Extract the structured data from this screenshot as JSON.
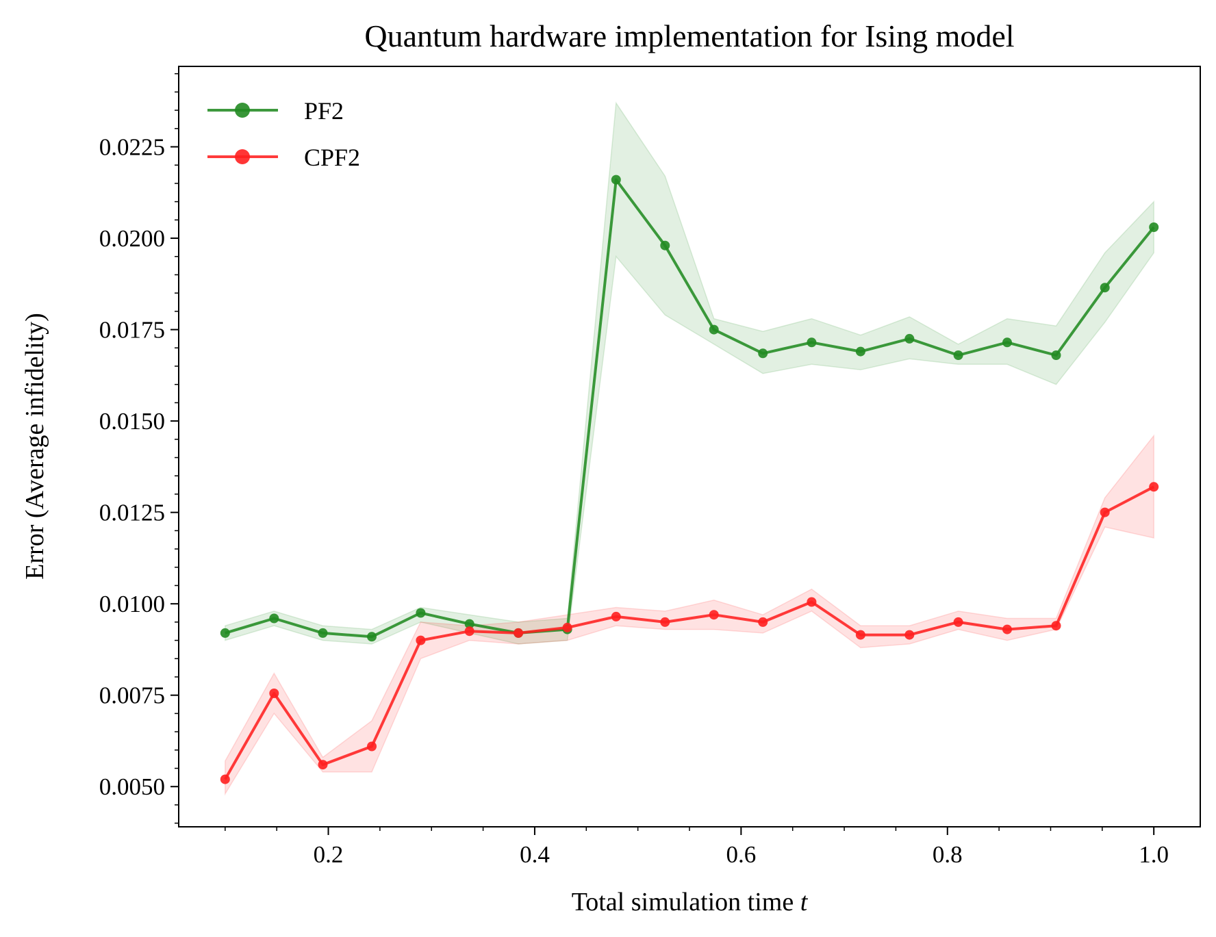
{
  "chart_data": {
    "type": "line",
    "title": "Quantum hardware implementation for Ising model",
    "xlabel": "Total simulation time",
    "xlabel_var": "t",
    "ylabel": "Error (Average infidelity)",
    "xlim": [
      0.055,
      1.045
    ],
    "ylim": [
      0.0039,
      0.0247
    ],
    "xticks": [
      0.2,
      0.4,
      0.6,
      0.8,
      1.0
    ],
    "xtick_labels": [
      "0.2",
      "0.4",
      "0.6",
      "0.8",
      "1.0"
    ],
    "yticks": [
      0.005,
      0.0075,
      0.01,
      0.0125,
      0.015,
      0.0175,
      0.02,
      0.0225
    ],
    "ytick_labels": [
      "0.0050",
      "0.0075",
      "0.0100",
      "0.0125",
      "0.0150",
      "0.0175",
      "0.0200",
      "0.0225"
    ],
    "x": [
      0.1,
      0.1474,
      0.1947,
      0.2421,
      0.2895,
      0.3368,
      0.3842,
      0.4316,
      0.4789,
      0.5263,
      0.5737,
      0.6211,
      0.6684,
      0.7158,
      0.7632,
      0.8105,
      0.8579,
      0.9053,
      0.9526,
      1.0
    ],
    "grid": false,
    "legend_position": "top-left",
    "series": [
      {
        "name": "PF2",
        "color": "#228B22",
        "band_color": "#c8e6c8",
        "values": [
          0.0092,
          0.0096,
          0.0092,
          0.0091,
          0.00975,
          0.00945,
          0.0092,
          0.0093,
          0.0216,
          0.0198,
          0.0175,
          0.01685,
          0.01715,
          0.0169,
          0.01725,
          0.0168,
          0.01715,
          0.0168,
          0.01865,
          0.0203
        ],
        "lower": [
          0.009,
          0.0094,
          0.009,
          0.0089,
          0.0095,
          0.0092,
          0.0089,
          0.009,
          0.0195,
          0.0179,
          0.0171,
          0.0163,
          0.01655,
          0.0164,
          0.0167,
          0.01655,
          0.01655,
          0.016,
          0.0177,
          0.0196
        ],
        "upper": [
          0.0094,
          0.0098,
          0.0094,
          0.0093,
          0.0099,
          0.0097,
          0.0095,
          0.0096,
          0.0237,
          0.0217,
          0.0178,
          0.01745,
          0.0178,
          0.01735,
          0.01785,
          0.0171,
          0.0178,
          0.0176,
          0.0196,
          0.021
        ]
      },
      {
        "name": "CPF2",
        "color": "#ff2020",
        "band_color": "#fdd0d0",
        "values": [
          0.0052,
          0.00755,
          0.0056,
          0.0061,
          0.009,
          0.00925,
          0.0092,
          0.00935,
          0.00965,
          0.0095,
          0.0097,
          0.0095,
          0.01005,
          0.00915,
          0.00915,
          0.0095,
          0.0093,
          0.0094,
          0.0125,
          0.0132
        ],
        "lower": [
          0.0048,
          0.007,
          0.0054,
          0.0054,
          0.0085,
          0.009,
          0.0089,
          0.009,
          0.0094,
          0.0093,
          0.0093,
          0.0092,
          0.0098,
          0.0088,
          0.0089,
          0.0093,
          0.009,
          0.0093,
          0.0121,
          0.0118
        ],
        "upper": [
          0.0057,
          0.0081,
          0.0058,
          0.0068,
          0.0095,
          0.0094,
          0.0095,
          0.0097,
          0.0099,
          0.0098,
          0.0101,
          0.0097,
          0.0104,
          0.0094,
          0.0094,
          0.0098,
          0.0096,
          0.0096,
          0.0129,
          0.0146
        ]
      }
    ]
  }
}
